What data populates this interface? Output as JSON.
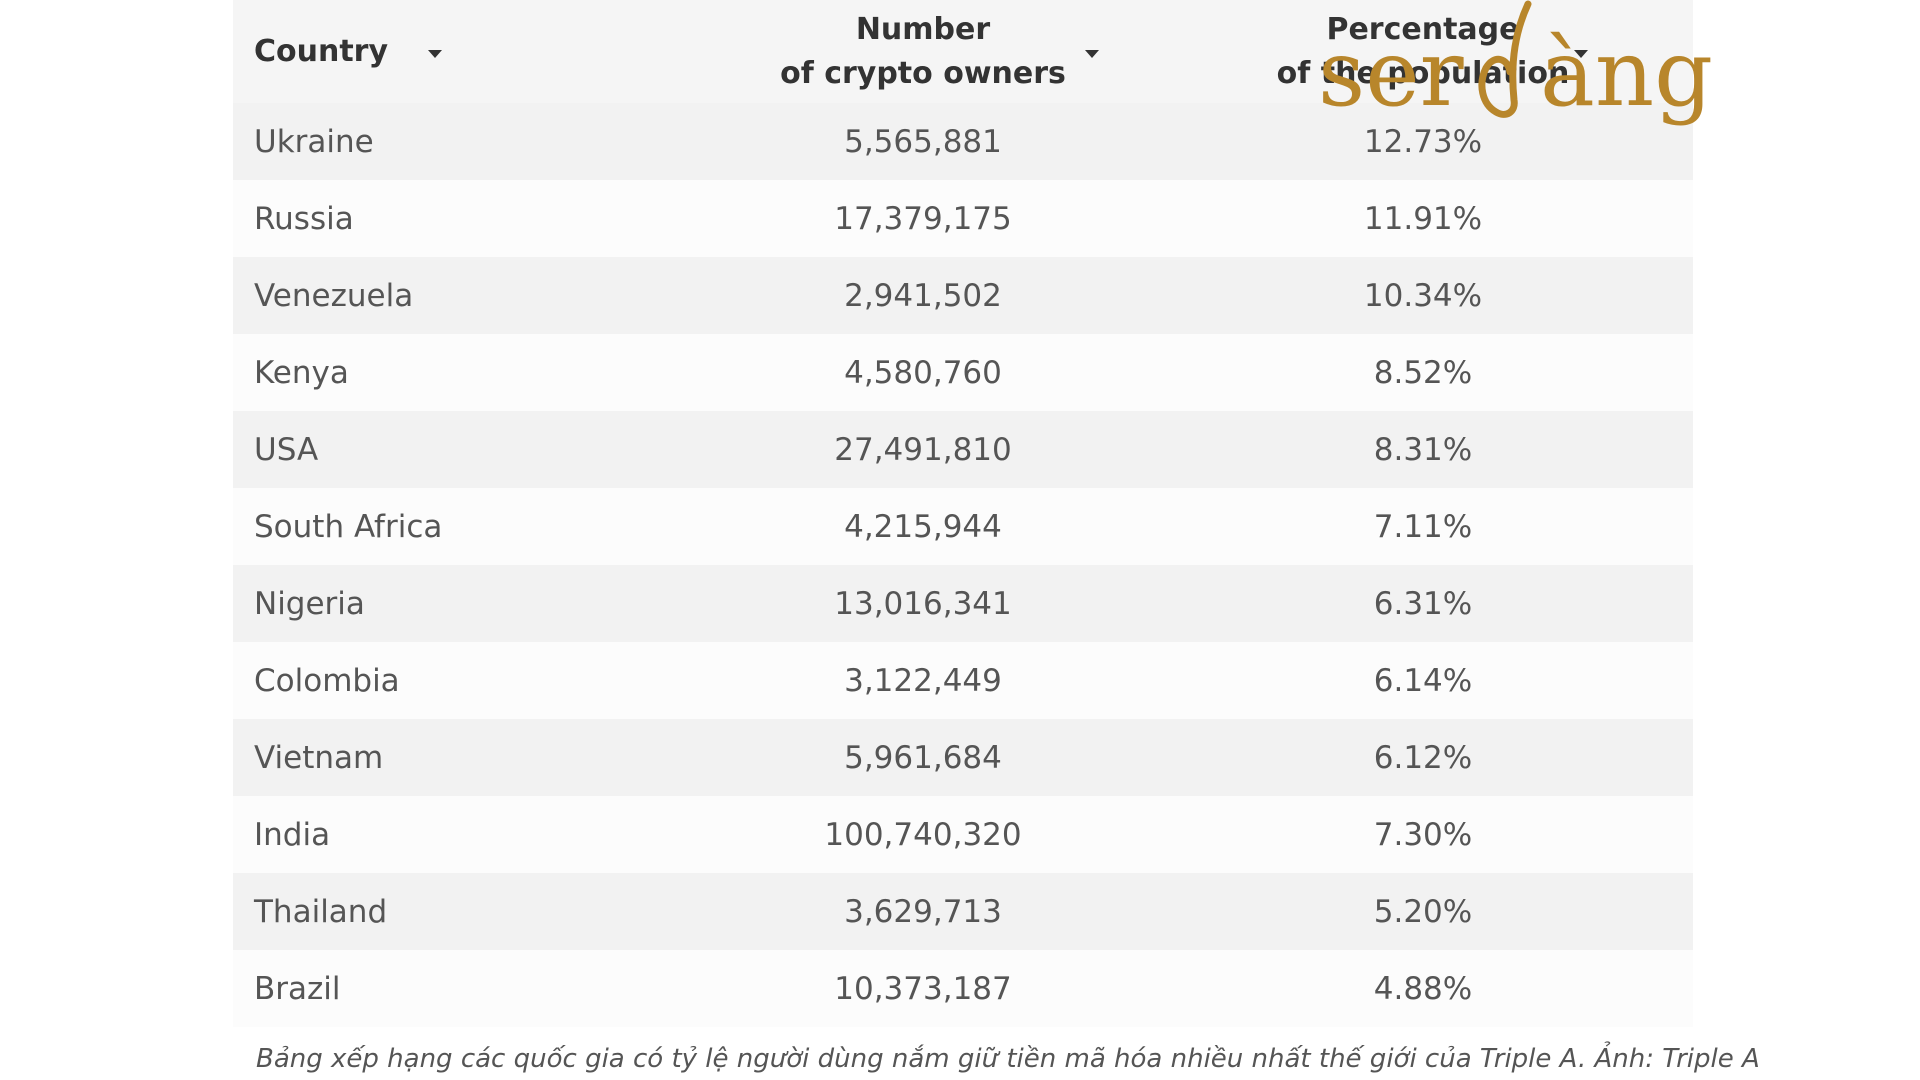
{
  "chart_data": {
    "type": "table",
    "columns": [
      "Country",
      "Number of crypto owners",
      "Percentage of the population"
    ],
    "rows": [
      [
        "Ukraine",
        "5,565,881",
        "12.73%"
      ],
      [
        "Russia",
        "17,379,175",
        "11.91%"
      ],
      [
        "Venezuela",
        "2,941,502",
        "10.34%"
      ],
      [
        "Kenya",
        "4,580,760",
        "8.52%"
      ],
      [
        "USA",
        "27,491,810",
        "8.31%"
      ],
      [
        "South Africa",
        "4,215,944",
        "7.11%"
      ],
      [
        "Nigeria",
        "13,016,341",
        "6.31%"
      ],
      [
        "Colombia",
        "3,122,449",
        "6.14%"
      ],
      [
        "Vietnam",
        "5,961,684",
        "6.12%"
      ],
      [
        "India",
        "100,740,320",
        "7.30%"
      ],
      [
        "Thailand",
        "3,629,713",
        "5.20%"
      ],
      [
        "Brazil",
        "10,373,187",
        "4.88%"
      ]
    ]
  },
  "header": {
    "country": "Country",
    "owners_line1": "Number",
    "owners_line2": "of crypto owners",
    "pct_line1": "Percentage",
    "pct_line2": "of the population"
  },
  "caption": "Bảng xếp hạng các quốc gia có tỷ lệ người dùng nắm giữ tiền mã hóa nhiều nhất thế giới của Triple A. Ảnh: Triple A",
  "logo": {
    "left_text": "ser",
    "right_text": "àng",
    "color": "#b8862b"
  },
  "colors": {
    "row_odd": "#f2f2f2",
    "row_even": "#fcfcfc",
    "header_bg": "#f5f5f5",
    "text": "#555555",
    "header_text": "#333333"
  }
}
